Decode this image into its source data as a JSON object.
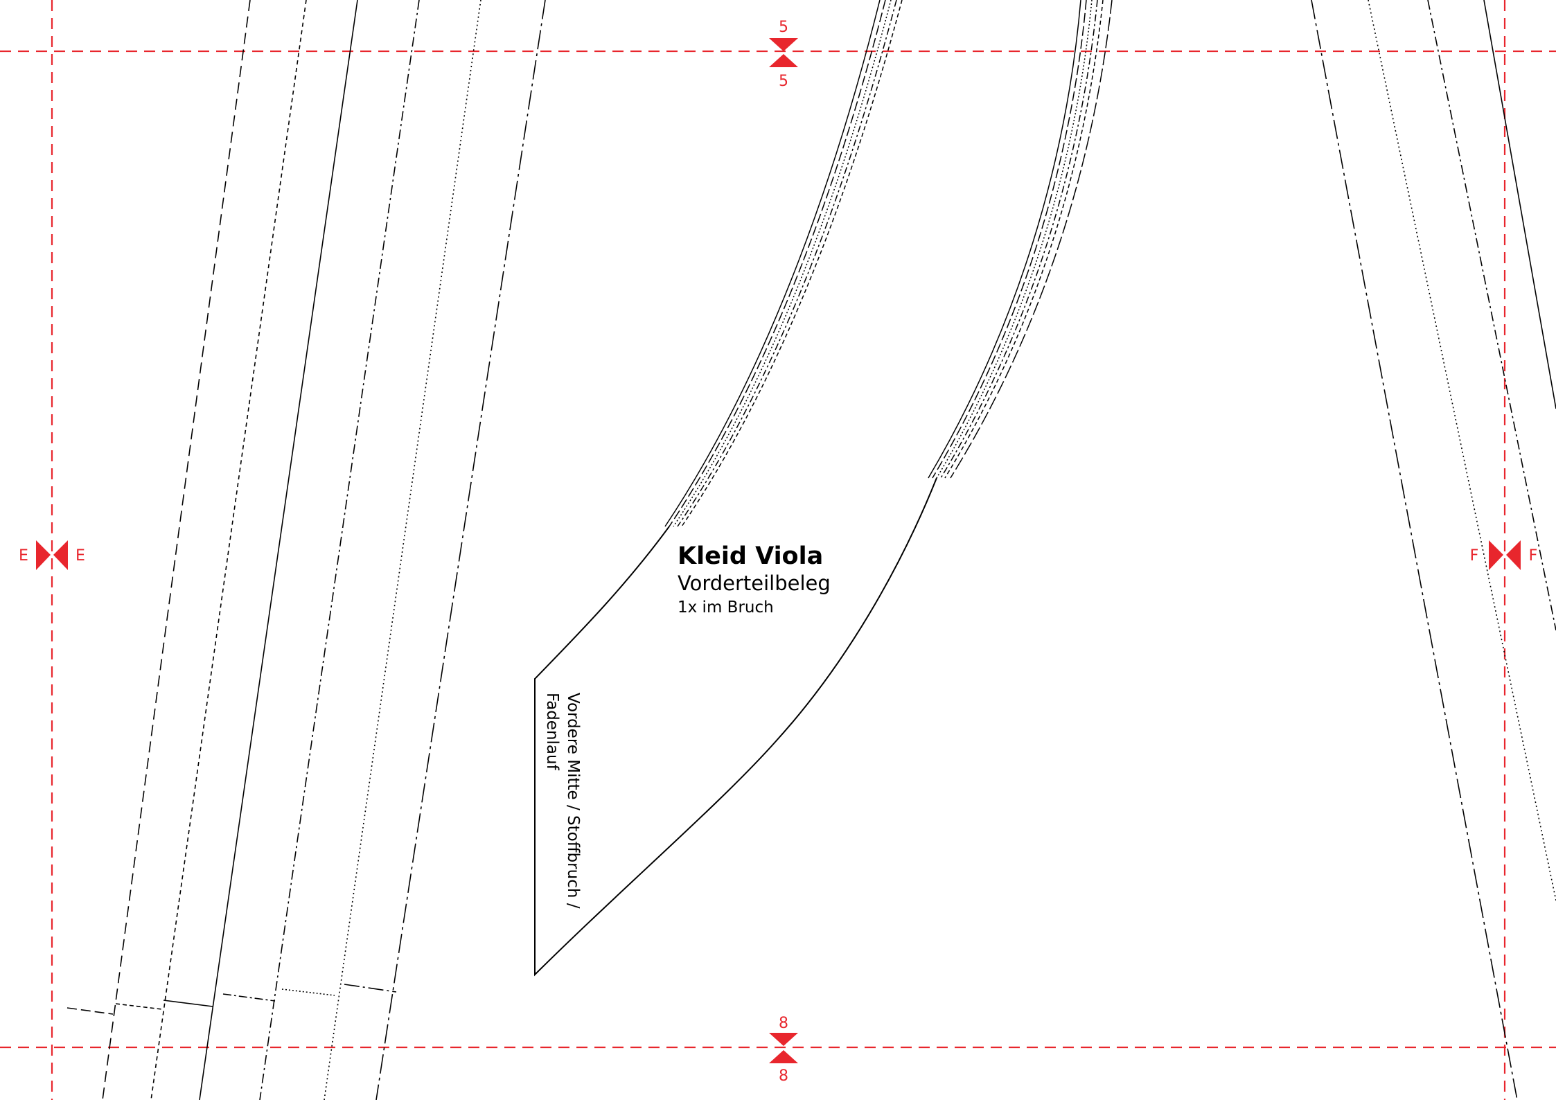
{
  "pattern_piece": {
    "title": "Kleid Viola",
    "subtitle": "Vorderteilbeleg",
    "cut_note": "1x im Bruch",
    "grainline_line1": "Vordere Mitte / Stoffbruch /",
    "grainline_line2": "Fadenlauf"
  },
  "alignment_marks": {
    "top": {
      "above": "5",
      "below": "5"
    },
    "bottom": {
      "above": "8",
      "below": "8"
    },
    "left": {
      "left": "E",
      "right": "E"
    },
    "right": {
      "left": "F",
      "right": "F"
    }
  },
  "colors": {
    "guide_red": "#e8262d",
    "line_black": "#000000",
    "paper": "#ffffff"
  }
}
